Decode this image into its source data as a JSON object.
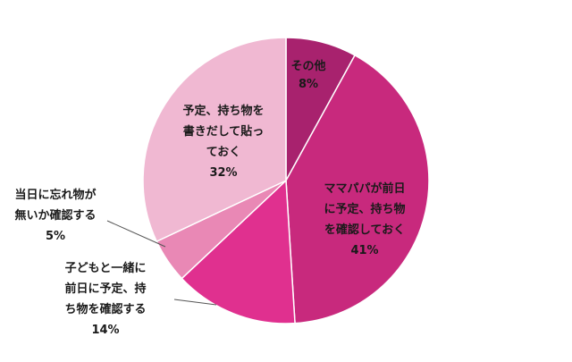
{
  "chart_data": {
    "type": "pie",
    "title": "",
    "start_angle_deg": 90,
    "direction": "clockwise",
    "slices": [
      {
        "name": "その他",
        "value": 8,
        "pct_label": "8%",
        "color": "#a8226e",
        "label_lines": [
          "その他",
          "8%"
        ]
      },
      {
        "name": "ママパパが前日に予定、持ち物を確認しておく",
        "value": 41,
        "pct_label": "41%",
        "color": "#c8297d",
        "label_lines": [
          "ママパパが前日",
          "に予定、持ち物",
          "を確認しておく",
          "41%"
        ]
      },
      {
        "name": "子どもと一緒に前日に予定、持ち物を確認する",
        "value": 14,
        "pct_label": "14%",
        "color": "#e0308f",
        "label_lines": [
          "子どもと一緒に",
          "前日に予定、持",
          "ち物を確認する",
          "14%"
        ]
      },
      {
        "name": "当日に忘れ物が無いか確認する",
        "value": 5,
        "pct_label": "5%",
        "color": "#e988b5",
        "label_lines": [
          "当日に忘れ物が",
          "無いか確認する",
          "5%"
        ]
      },
      {
        "name": "予定、持ち物を書きだして貼っておく",
        "value": 32,
        "pct_label": "32%",
        "color": "#f0b8d2",
        "label_lines": [
          "予定、持ち物を",
          "書きだして貼っ",
          "ておく",
          "32%"
        ]
      }
    ]
  }
}
